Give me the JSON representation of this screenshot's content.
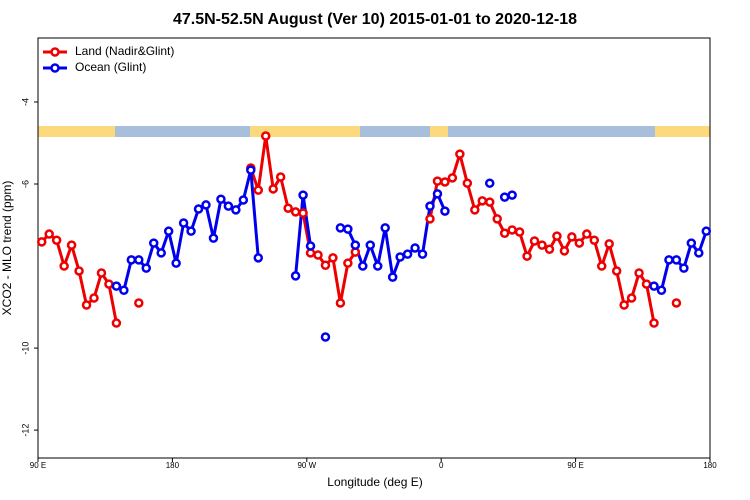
{
  "chart_data": {
    "type": "line",
    "title": "47.5N-52.5N August (Ver 10)   2015-01-01 to 2020-12-18",
    "x_label": "Longitude (deg E)",
    "y_label": "XCO2 - MLO trend (ppm)",
    "xlim": [
      90,
      540
    ],
    "ylim": [
      -2.44,
      -12.68
    ],
    "xticks": [
      {
        "value": 90,
        "label": "90 E"
      },
      180,
      {
        "value": 270,
        "label": "90 W"
      },
      {
        "value": 360,
        "label": "0"
      },
      {
        "value": 450,
        "label": "90 E"
      },
      {
        "value": 540,
        "label": "180"
      }
    ],
    "yticks": [
      -4,
      -6,
      -10,
      -12
    ],
    "legend": "top-left",
    "x": [
      92.5,
      97.5,
      102.5,
      107.5,
      112.5,
      117.5,
      122.5,
      127.5,
      132.5,
      137.5,
      142.5,
      147.5,
      152.5,
      157.5,
      162.5,
      167.5,
      172.5,
      177.5,
      182.5,
      187.5,
      192.5,
      197.5,
      202.5,
      207.5,
      212.5,
      217.5,
      222.5,
      227.5,
      232.5,
      237.5,
      242.5,
      247.5,
      252.5,
      257.5,
      262.5,
      267.5,
      272.5,
      277.5,
      282.5,
      287.5,
      292.5,
      297.5,
      302.5,
      307.5,
      312.5,
      317.5,
      322.5,
      327.5,
      332.5,
      337.5,
      342.5,
      347.5,
      352.5,
      357.5,
      362.5,
      367.5,
      372.5,
      377.5,
      382.5,
      387.5,
      392.5,
      397.5,
      402.5,
      407.5,
      412.5,
      417.5,
      422.5,
      427.5,
      432.5,
      437.5,
      442.5,
      447.5,
      452.5,
      457.5,
      462.5,
      467.5,
      472.5,
      477.5,
      482.5,
      487.5,
      492.5,
      497.5,
      502.5,
      507.5,
      512.5,
      517.5,
      522.5,
      527.5,
      532.5,
      537.5
    ],
    "series": [
      {
        "name": "Land (Nadir&Glint)",
        "color": "#ee0000",
        "values": [
          -7.41,
          -7.22,
          -7.37,
          -8.0,
          -7.49,
          -8.12,
          -8.95,
          -8.78,
          -8.17,
          -8.44,
          -9.39,
          null,
          null,
          -8.9,
          null,
          null,
          null,
          null,
          null,
          null,
          null,
          null,
          null,
          null,
          null,
          null,
          null,
          null,
          -5.61,
          -6.15,
          -4.83,
          -6.12,
          -5.83,
          -6.59,
          -6.68,
          -6.71,
          -7.68,
          -7.73,
          -7.98,
          -7.8,
          -8.9,
          -7.93,
          -7.66,
          null,
          null,
          null,
          null,
          null,
          null,
          null,
          null,
          null,
          -6.85,
          -5.93,
          -5.95,
          -5.85,
          -5.27,
          -5.98,
          -6.63,
          -6.41,
          -6.44,
          -6.85,
          -7.2,
          -7.12,
          -7.17,
          -7.76,
          -7.39,
          -7.49,
          -7.59,
          -7.27,
          -7.63,
          -7.29,
          -7.44,
          -7.22,
          -7.37,
          -8.0,
          -7.46,
          -8.12,
          -8.95,
          -8.78,
          -8.17,
          -8.44,
          -9.39,
          null,
          null,
          -8.9,
          null,
          null,
          null,
          null
        ]
      },
      {
        "name": "Ocean (Glint)",
        "color": "#0000ee",
        "values": [
          null,
          null,
          null,
          null,
          null,
          null,
          null,
          null,
          null,
          null,
          -8.49,
          -8.59,
          -7.85,
          -7.85,
          -8.05,
          -7.44,
          -7.68,
          -7.15,
          -7.93,
          -6.95,
          -7.15,
          -6.61,
          -6.51,
          -7.32,
          -6.37,
          -6.54,
          -6.63,
          -6.39,
          -5.66,
          -7.8,
          null,
          null,
          null,
          null,
          -8.24,
          -6.27,
          -7.51,
          null,
          -9.73,
          null,
          -7.07,
          -7.1,
          -7.49,
          -8.0,
          -7.49,
          -8.0,
          -7.07,
          -8.27,
          -7.78,
          -7.71,
          -7.56,
          -7.71,
          -6.54,
          -6.24,
          -6.66,
          null,
          null,
          null,
          null,
          null,
          -5.98,
          null,
          -6.32,
          -6.27,
          null,
          null,
          null,
          null,
          null,
          null,
          null,
          null,
          null,
          null,
          null,
          null,
          null,
          null,
          null,
          null,
          null,
          null,
          -8.49,
          -8.59,
          -7.85,
          -7.85,
          -8.05,
          -7.44,
          -7.68,
          -7.15
        ]
      }
    ]
  }
}
